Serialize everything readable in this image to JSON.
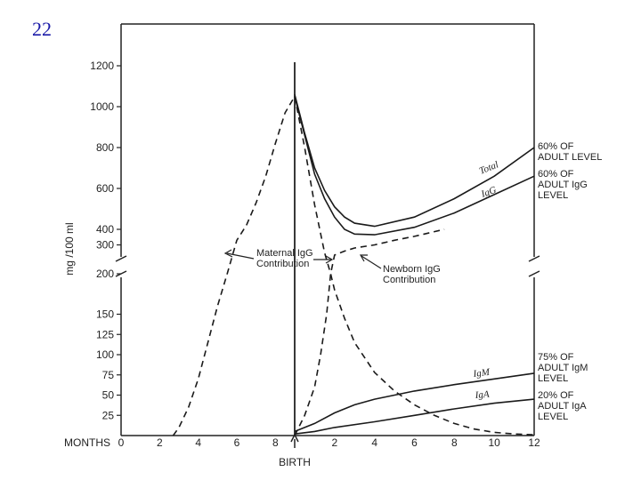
{
  "slide_number": "22",
  "chart_data": {
    "type": "line",
    "ylabel": "mg /100 ml",
    "x_axis": {
      "label": "MONTHS",
      "ticks_before_birth": [
        "0",
        "2",
        "4",
        "6",
        "8"
      ],
      "ticks_after_birth": [
        "2",
        "4",
        "6",
        "8",
        "10",
        "12"
      ],
      "birth_label": "BIRTH",
      "prenatal_range": [
        0,
        9
      ],
      "postnatal_range": [
        0,
        12
      ]
    },
    "y_axis": {
      "scale": "broken",
      "lower_range": [
        0,
        200
      ],
      "upper_range": [
        200,
        1200
      ],
      "lower_ticks": [
        "25",
        "50",
        "75",
        "100",
        "125",
        "150",
        "200"
      ],
      "upper_ticks": [
        "300",
        "400",
        "600",
        "800",
        "1000",
        "1200"
      ]
    },
    "series": [
      {
        "name": "Total",
        "style": "solid",
        "period": "postnatal",
        "points": [
          [
            0,
            1060
          ],
          [
            0.5,
            870
          ],
          [
            1,
            700
          ],
          [
            1.5,
            590
          ],
          [
            2,
            510
          ],
          [
            2.5,
            460
          ],
          [
            3,
            430
          ],
          [
            4,
            415
          ],
          [
            6,
            460
          ],
          [
            8,
            550
          ],
          [
            10,
            660
          ],
          [
            12,
            800
          ]
        ]
      },
      {
        "name": "IgG",
        "style": "solid",
        "period": "postnatal",
        "points": [
          [
            0,
            1050
          ],
          [
            0.5,
            860
          ],
          [
            1,
            670
          ],
          [
            1.5,
            550
          ],
          [
            2,
            460
          ],
          [
            2.5,
            400
          ],
          [
            3,
            370
          ],
          [
            4,
            365
          ],
          [
            6,
            410
          ],
          [
            8,
            480
          ],
          [
            10,
            570
          ],
          [
            12,
            660
          ]
        ]
      },
      {
        "name": "IgM",
        "style": "solid",
        "period": "postnatal",
        "points": [
          [
            0,
            5
          ],
          [
            1,
            15
          ],
          [
            2,
            28
          ],
          [
            3,
            38
          ],
          [
            4,
            45
          ],
          [
            6,
            55
          ],
          [
            8,
            63
          ],
          [
            10,
            70
          ],
          [
            12,
            77
          ]
        ]
      },
      {
        "name": "IgA",
        "style": "solid",
        "period": "postnatal",
        "points": [
          [
            0,
            2
          ],
          [
            1,
            5
          ],
          [
            2,
            10
          ],
          [
            4,
            17
          ],
          [
            6,
            25
          ],
          [
            8,
            33
          ],
          [
            10,
            40
          ],
          [
            12,
            45
          ]
        ]
      },
      {
        "name": "Maternal IgG Contribution",
        "style": "dashed",
        "period": "prenatal",
        "points": [
          [
            2.7,
            0
          ],
          [
            3,
            10
          ],
          [
            3.5,
            35
          ],
          [
            4,
            70
          ],
          [
            4.5,
            115
          ],
          [
            5,
            160
          ],
          [
            5.5,
            200
          ],
          [
            6,
            330
          ],
          [
            6.5,
            420
          ],
          [
            7,
            530
          ],
          [
            7.5,
            660
          ],
          [
            8,
            820
          ],
          [
            8.5,
            970
          ],
          [
            9,
            1050
          ]
        ]
      },
      {
        "name": "Maternal IgG Contribution",
        "style": "dashed",
        "period": "postnatal",
        "points": [
          [
            0,
            1050
          ],
          [
            0.5,
            800
          ],
          [
            1,
            520
          ],
          [
            1.5,
            250
          ],
          [
            1.8,
            200
          ],
          [
            2,
            180
          ],
          [
            2.5,
            145
          ],
          [
            3,
            115
          ],
          [
            4,
            78
          ],
          [
            5,
            55
          ],
          [
            6,
            38
          ],
          [
            7,
            25
          ],
          [
            8,
            15
          ],
          [
            9,
            8
          ],
          [
            10,
            4
          ],
          [
            11,
            2
          ],
          [
            12,
            1
          ]
        ]
      },
      {
        "name": "Newborn IgG Contribution",
        "style": "dashed",
        "period": "postnatal",
        "points": [
          [
            0,
            0
          ],
          [
            0.5,
            25
          ],
          [
            1,
            60
          ],
          [
            1.3,
            100
          ],
          [
            1.6,
            150
          ],
          [
            1.8,
            200
          ],
          [
            2,
            235
          ],
          [
            2.5,
            260
          ],
          [
            3,
            280
          ],
          [
            4,
            300
          ],
          [
            5,
            330
          ],
          [
            6,
            355
          ],
          [
            7,
            385
          ],
          [
            7.5,
            400
          ]
        ]
      }
    ]
  },
  "annotations": {
    "total": "Total",
    "igg": "IgG",
    "igm": "IgM",
    "iga": "IgA",
    "maternal": [
      "Maternal IgG",
      "Contribution"
    ],
    "newborn": [
      "Newborn IgG",
      "Contribution"
    ],
    "total_level": [
      "60% OF",
      "ADULT LEVEL"
    ],
    "igg_level": [
      "60% OF",
      "ADULT IgG",
      "LEVEL"
    ],
    "igm_level": [
      "75% OF",
      "ADULT IgM",
      "LEVEL"
    ],
    "iga_level": [
      "20% OF",
      "ADULT IgA",
      "LEVEL"
    ]
  }
}
